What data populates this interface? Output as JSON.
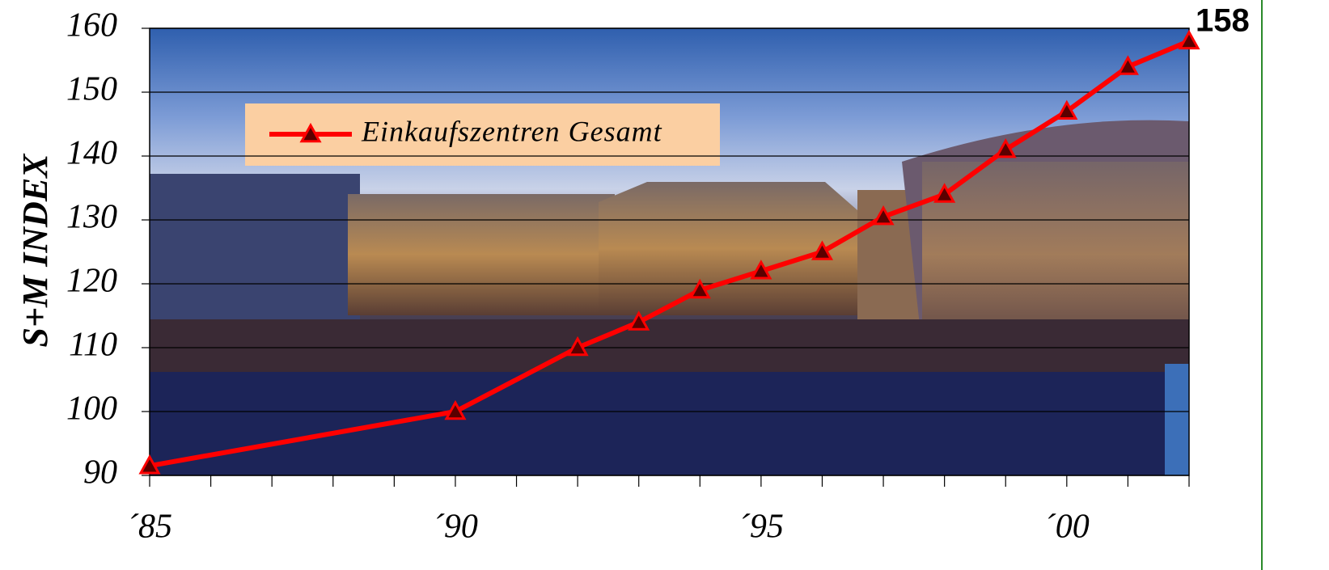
{
  "chart_data": {
    "type": "line",
    "y_label": "S+M INDEX",
    "x": [
      1985,
      1990,
      1992,
      1993,
      1994,
      1995,
      1996,
      1997,
      1998,
      1999,
      2000,
      2001,
      2002
    ],
    "series": [
      {
        "name": "Einkaufszentren Gesamt",
        "color": "#ff0000",
        "marker": "triangle",
        "values": [
          91.5,
          100,
          110,
          114,
          119,
          122,
          125,
          130.5,
          134,
          141,
          147,
          154,
          158
        ]
      }
    ],
    "label_last_point": true,
    "xlim": [
      1985,
      2002
    ],
    "xticks": [
      {
        "value": 1985,
        "label": "´85"
      },
      {
        "value": 1990,
        "label": "´90"
      },
      {
        "value": 1995,
        "label": "´95"
      },
      {
        "value": 2000,
        "label": "´00"
      }
    ],
    "xminorticks": [
      1986,
      1987,
      1988,
      1989,
      1991,
      1992,
      1993,
      1994,
      1996,
      1997,
      1998,
      1999,
      2001,
      2002
    ],
    "ylim": [
      90,
      160
    ],
    "yticks": [
      90,
      100,
      110,
      120,
      130,
      140,
      150,
      160
    ],
    "grid": true,
    "legend": "upper left"
  }
}
